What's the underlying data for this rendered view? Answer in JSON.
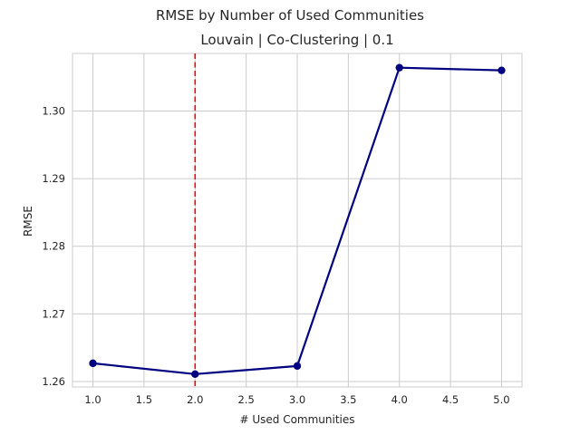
{
  "chart_data": {
    "type": "line",
    "suptitle": "RMSE by Number of Used Communities",
    "title": "Louvain | Co-Clustering | 0.1",
    "xlabel": "# Used Communities",
    "ylabel": "RMSE",
    "xlim": [
      0.8,
      5.2
    ],
    "ylim": [
      1.2592,
      1.3085
    ],
    "xticks": [
      1.0,
      1.5,
      2.0,
      2.5,
      3.0,
      3.5,
      4.0,
      4.5,
      5.0
    ],
    "xtick_labels": [
      "1.0",
      "1.5",
      "2.0",
      "2.5",
      "3.0",
      "3.5",
      "4.0",
      "4.5",
      "5.0"
    ],
    "yticks": [
      1.26,
      1.27,
      1.28,
      1.29,
      1.3
    ],
    "ytick_labels": [
      "1.26",
      "1.27",
      "1.28",
      "1.29",
      "1.30"
    ],
    "grid": true,
    "series": [
      {
        "x": [
          1,
          2,
          3,
          4,
          5
        ],
        "y": [
          1.2627,
          1.2611,
          1.2623,
          1.3064,
          1.306
        ],
        "color": "#000080",
        "marker": "circle"
      }
    ],
    "vline": {
      "x": 2.0,
      "color": "#ff0000",
      "style": "dashed"
    }
  }
}
